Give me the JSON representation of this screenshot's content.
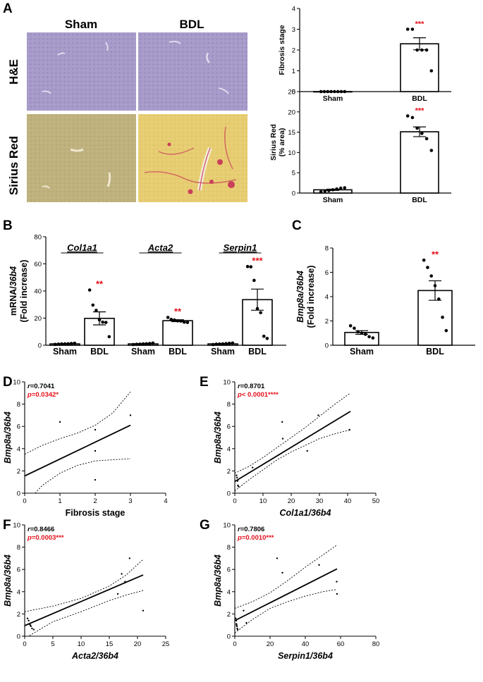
{
  "panels": {
    "A": "A",
    "B": "B",
    "C": "C",
    "D": "D",
    "E": "E",
    "F": "F",
    "G": "G"
  },
  "micrographs": {
    "col_headers": [
      "Sham",
      "BDL"
    ],
    "row_headers": [
      "H&E",
      "Sirius Red"
    ],
    "colors": {
      "he": "#a79bc9",
      "he_dark": "#8f7fb9",
      "sirius_sham": "#bfb27e",
      "sirius_bdl": "#e7cd72",
      "sirius_red": "#c8405a"
    }
  },
  "accent_color": "#e4111b",
  "chart_data": [
    {
      "id": "fibrosis",
      "type": "bar",
      "ylabel": "Fibrosis stage",
      "categories": [
        "Sham",
        "BDL"
      ],
      "values": [
        0,
        2.3
      ],
      "sem": [
        0,
        0.29
      ],
      "points": [
        [
          0,
          0,
          0,
          0,
          0,
          0,
          0,
          0
        ],
        [
          3,
          3,
          2,
          2,
          2,
          1
        ]
      ],
      "ylim": [
        0,
        4
      ],
      "yticks": [
        0,
        1,
        2,
        3,
        4
      ],
      "annotations": [
        "",
        "***"
      ]
    },
    {
      "id": "sirius",
      "type": "bar",
      "ylabel": "Sirius Red",
      "ylabel2": "(% area)",
      "categories": [
        "Sham",
        "BDL"
      ],
      "values": [
        0.8,
        15.1
      ],
      "sem": [
        0.15,
        1.2
      ],
      "points": [
        [
          0.3,
          0.5,
          0.6,
          0.8,
          1.0,
          1.2,
          1.3
        ],
        [
          19,
          18.6,
          16,
          14.7,
          13.4,
          10.5
        ]
      ],
      "ylim": [
        0,
        25
      ],
      "yticks": [
        0,
        5,
        10,
        15,
        20,
        25
      ],
      "annotations": [
        "",
        "***"
      ]
    },
    {
      "id": "mrna",
      "type": "bar",
      "ylabel": "mRNA/36b4",
      "ylabel_italic_part": "36b4",
      "ylabel2": "(Fold increase)",
      "groups": [
        "Col1a1",
        "Acta2",
        "Serpin1"
      ],
      "categories": [
        "Sham",
        "BDL",
        "Sham",
        "BDL",
        "Sham",
        "BDL"
      ],
      "values": [
        1,
        19.8,
        1,
        18.1,
        1,
        33.6
      ],
      "sem": [
        0.2,
        4.8,
        0.2,
        0.7,
        0.2,
        7.8
      ],
      "points": [
        [
          0.6,
          0.8,
          1,
          1,
          1.1,
          1.3,
          1.5
        ],
        [
          40.7,
          29.6,
          25.7,
          18.7,
          17,
          16.8,
          6.3
        ],
        [
          0.5,
          0.7,
          0.8,
          1,
          1.1,
          1.3,
          1.6
        ],
        [
          20.5,
          19,
          18.6,
          18,
          17.8,
          17,
          16.8
        ],
        [
          0.5,
          0.8,
          0.9,
          1,
          1.2,
          1.4,
          1.6
        ],
        [
          58,
          57.8,
          47.8,
          27,
          24,
          6.6,
          5
        ]
      ],
      "ylim": [
        0,
        80
      ],
      "yticks": [
        0,
        20,
        40,
        60,
        80
      ],
      "annotations": [
        "",
        "**",
        "",
        "**",
        "",
        "***"
      ]
    },
    {
      "id": "bmp8a",
      "type": "bar",
      "ylabel": "Bmp8a/36b4",
      "ylabel2": "(Fold increase)",
      "categories": [
        "Sham",
        "BDL"
      ],
      "values": [
        1.05,
        4.5
      ],
      "sem": [
        0.15,
        0.8
      ],
      "points": [
        [
          1.6,
          1.4,
          1.1,
          1.0,
          0.9,
          0.7,
          0.6
        ],
        [
          7.0,
          6.4,
          5.7,
          4.9,
          3.8,
          2.3,
          1.2
        ]
      ],
      "ylim": [
        0,
        8
      ],
      "yticks": [
        0,
        2,
        4,
        6,
        8
      ],
      "annotations": [
        "",
        "**"
      ]
    },
    {
      "id": "corrD",
      "type": "scatter",
      "xlabel": "Fibrosis stage",
      "ylabel": "Bmp8a/36b4",
      "r_text": "r=0.7041",
      "p_text": "p=0.0342*",
      "points": [
        [
          1,
          6.4
        ],
        [
          2,
          5.7
        ],
        [
          2,
          3.8
        ],
        [
          2,
          1.2
        ],
        [
          3,
          7.0
        ]
      ],
      "fit": [
        [
          0,
          1.55
        ],
        [
          3,
          6.1
        ]
      ],
      "ci_upper": [
        [
          0,
          3.5
        ],
        [
          0.5,
          4.3
        ],
        [
          1,
          4.9
        ],
        [
          1.5,
          5.4
        ],
        [
          2,
          6.1
        ],
        [
          2.5,
          7.2
        ],
        [
          3,
          9.1
        ]
      ],
      "ci_lower": [
        [
          0.3,
          0
        ],
        [
          0.5,
          0.7
        ],
        [
          1,
          1.8
        ],
        [
          1.5,
          2.5
        ],
        [
          2,
          2.9
        ],
        [
          2.5,
          3.0
        ],
        [
          3,
          3.1
        ]
      ],
      "xlim": [
        0,
        4
      ],
      "ylim": [
        0,
        10
      ],
      "xticks": [
        0,
        1,
        2,
        3,
        4
      ],
      "yticks": [
        0,
        2,
        4,
        6,
        8,
        10
      ]
    },
    {
      "id": "corrE",
      "type": "scatter",
      "xlabel": "Col1a1/36b4",
      "ylabel": "Bmp8a/36b4",
      "r_text": "r=0.8701",
      "p_text": "p< 0.0001****",
      "points": [
        [
          0.6,
          1.6
        ],
        [
          0.8,
          1.4
        ],
        [
          1,
          1.1
        ],
        [
          1.1,
          0.7
        ],
        [
          1.3,
          0.6
        ],
        [
          6.3,
          2.3
        ],
        [
          16.8,
          6.4
        ],
        [
          17,
          4.9
        ],
        [
          25.7,
          3.8
        ],
        [
          29.6,
          7.0
        ],
        [
          40.7,
          5.7
        ]
      ],
      "fit": [
        [
          0,
          1.05
        ],
        [
          41,
          7.35
        ]
      ],
      "ci_upper": [
        [
          0,
          1.8
        ],
        [
          5,
          2.4
        ],
        [
          10,
          3.2
        ],
        [
          15,
          4.1
        ],
        [
          20,
          5.0
        ],
        [
          25,
          5.9
        ],
        [
          30,
          6.9
        ],
        [
          35,
          7.9
        ],
        [
          41,
          9.0
        ]
      ],
      "ci_lower": [
        [
          0,
          0.2
        ],
        [
          5,
          1.2
        ],
        [
          10,
          2.1
        ],
        [
          15,
          3.0
        ],
        [
          20,
          3.7
        ],
        [
          25,
          4.3
        ],
        [
          30,
          4.9
        ],
        [
          35,
          5.3
        ],
        [
          41,
          5.7
        ]
      ],
      "xlim": [
        0,
        50
      ],
      "ylim": [
        0,
        10
      ],
      "xticks": [
        0,
        10,
        20,
        30,
        40,
        50
      ],
      "yticks": [
        0,
        2,
        4,
        6,
        8,
        10
      ]
    },
    {
      "id": "corrF",
      "type": "scatter",
      "xlabel": "Acta2/36b4",
      "ylabel": "Bmp8a/36b4",
      "r_text": "r=0.8466",
      "p_text": "p=0.0003***",
      "points": [
        [
          0.5,
          1.6
        ],
        [
          0.7,
          1.4
        ],
        [
          0.8,
          1.1
        ],
        [
          1,
          1.0
        ],
        [
          1.1,
          0.9
        ],
        [
          1.3,
          0.7
        ],
        [
          1.6,
          0.6
        ],
        [
          16.5,
          3.8
        ],
        [
          17.2,
          5.6
        ],
        [
          17.8,
          4.9
        ],
        [
          18.6,
          7.0
        ],
        [
          21,
          2.3
        ]
      ],
      "fit": [
        [
          0,
          0.95
        ],
        [
          21,
          5.5
        ]
      ],
      "ci_upper": [
        [
          0,
          2.2
        ],
        [
          5,
          2.7
        ],
        [
          10,
          3.4
        ],
        [
          15,
          4.5
        ],
        [
          18,
          5.5
        ],
        [
          21,
          6.9
        ]
      ],
      "ci_lower": [
        [
          0,
          -0.2
        ],
        [
          5,
          1.3
        ],
        [
          10,
          2.2
        ],
        [
          15,
          3.2
        ],
        [
          18,
          3.7
        ],
        [
          21,
          4.1
        ]
      ],
      "xlim": [
        0,
        25
      ],
      "ylim": [
        0,
        10
      ],
      "xticks": [
        0,
        5,
        10,
        15,
        20,
        25
      ],
      "yticks": [
        0,
        2,
        4,
        6,
        8,
        10
      ]
    },
    {
      "id": "corrG",
      "type": "scatter",
      "xlabel": "Serpin1/36b4",
      "ylabel": "Bmp8a/36b4",
      "r_text": "r=0.7806",
      "p_text": "p=0.0010***",
      "points": [
        [
          0.5,
          1.6
        ],
        [
          0.8,
          1.4
        ],
        [
          0.9,
          1.1
        ],
        [
          1,
          1.0
        ],
        [
          1.2,
          0.9
        ],
        [
          1.4,
          0.7
        ],
        [
          1.6,
          0.6
        ],
        [
          5,
          2.3
        ],
        [
          6.6,
          1.2
        ],
        [
          24,
          7.0
        ],
        [
          27,
          5.7
        ],
        [
          47.8,
          6.4
        ],
        [
          57.8,
          4.9
        ],
        [
          58,
          3.8
        ]
      ],
      "fit": [
        [
          0,
          1.4
        ],
        [
          58,
          6.05
        ]
      ],
      "ci_upper": [
        [
          0,
          2.5
        ],
        [
          10,
          3.1
        ],
        [
          20,
          3.9
        ],
        [
          30,
          5.0
        ],
        [
          40,
          6.2
        ],
        [
          50,
          7.3
        ],
        [
          58,
          8.2
        ]
      ],
      "ci_lower": [
        [
          0,
          0.3
        ],
        [
          10,
          1.5
        ],
        [
          20,
          2.5
        ],
        [
          30,
          3.1
        ],
        [
          40,
          3.6
        ],
        [
          50,
          4.0
        ],
        [
          58,
          4.2
        ]
      ],
      "xlim": [
        0,
        80
      ],
      "ylim": [
        0,
        10
      ],
      "xticks": [
        0,
        20,
        40,
        60,
        80
      ],
      "yticks": [
        0,
        2,
        4,
        6,
        8,
        10
      ]
    }
  ]
}
